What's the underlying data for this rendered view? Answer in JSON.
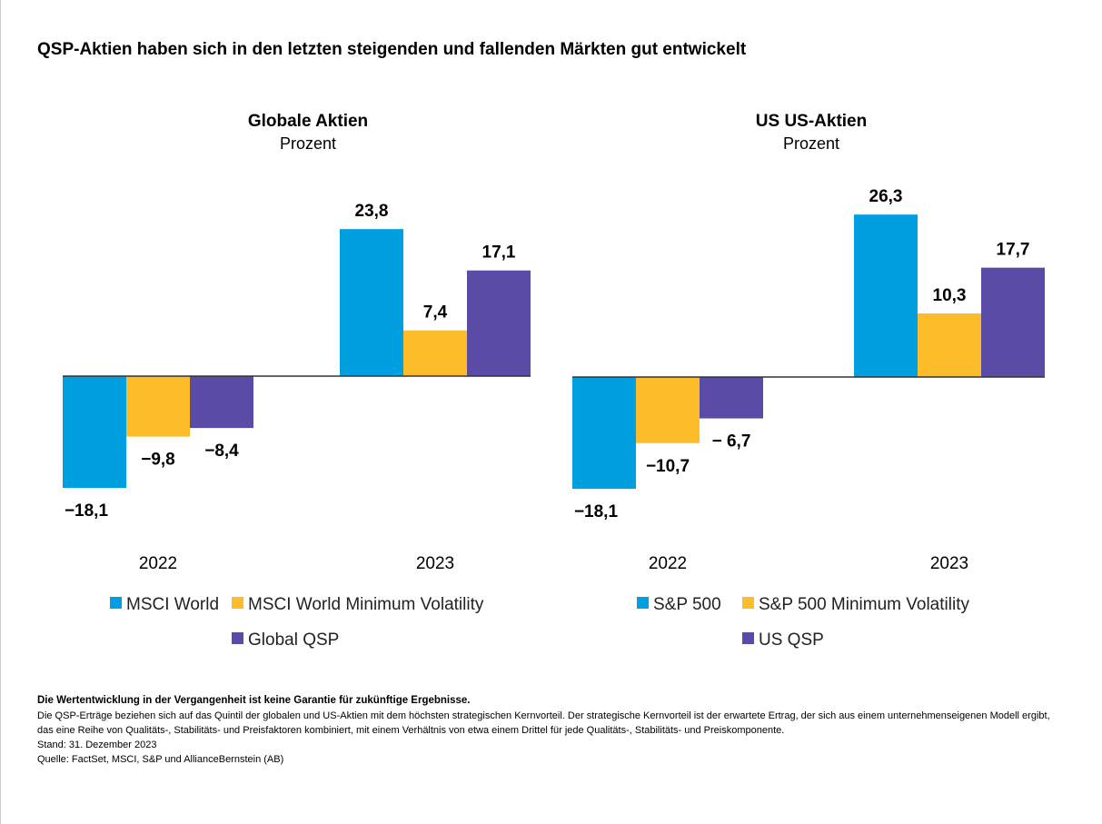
{
  "title": "QSP-Aktien haben sich in den letzten steigenden und fallenden Märkten gut entwickelt",
  "colors": {
    "series1": "#009FDF",
    "series2": "#FDBD2A",
    "series3": "#5A4BA6"
  },
  "chart_data": [
    {
      "type": "bar",
      "title": "Globale Aktien",
      "subtitle": "Prozent",
      "categories": [
        "2022",
        "2023"
      ],
      "series": [
        {
          "name": "MSCI World",
          "values": [
            -18.1,
            23.8
          ]
        },
        {
          "name": "MSCI World Minimum Volatility",
          "values": [
            -9.8,
            7.4
          ]
        },
        {
          "name": "Global QSP",
          "values": [
            -8.4,
            17.1
          ]
        }
      ],
      "data_labels": [
        [
          "−18,1",
          "23,8"
        ],
        [
          "−9,8",
          "7,4"
        ],
        [
          "−8,4",
          "17,1"
        ]
      ],
      "grid": false,
      "legend": "bottom"
    },
    {
      "type": "bar",
      "title": "US US-Aktien",
      "subtitle": "Prozent",
      "categories": [
        "2022",
        "2023"
      ],
      "series": [
        {
          "name": "S&P 500",
          "values": [
            -18.1,
            26.3
          ]
        },
        {
          "name": "S&P 500 Minimum Volatility",
          "values": [
            -10.7,
            10.3
          ]
        },
        {
          "name": "US QSP",
          "values": [
            -6.7,
            17.7
          ]
        }
      ],
      "data_labels": [
        [
          "−18,1",
          "26,3"
        ],
        [
          "−10,7",
          "10,3"
        ],
        [
          "− 6,7",
          "17,7"
        ]
      ],
      "grid": false,
      "legend": "bottom"
    }
  ],
  "footnotes": {
    "disclaimer": "Die Wertentwicklung in der Vergangenheit ist keine Garantie für zukünftige Ergebnisse.",
    "definition": "Die QSP-Erträge beziehen sich auf das Quintil der globalen und US-Aktien mit dem höchsten strategischen Kernvorteil. Der strategische Kernvorteil ist der erwartete Ertrag, der sich aus einem unternehmenseigenen Modell ergibt, das eine Reihe von Qualitäts-, Stabilitäts- und Preisfaktoren kombiniert, mit einem Verhältnis von etwa einem Drittel für jede Qualitäts-, Stabilitäts- und Preiskomponente.",
    "date": "Stand: 31. Dezember 2023",
    "source": "Quelle: FactSet, MSCI, S&P und AllianceBernstein (AB)"
  }
}
